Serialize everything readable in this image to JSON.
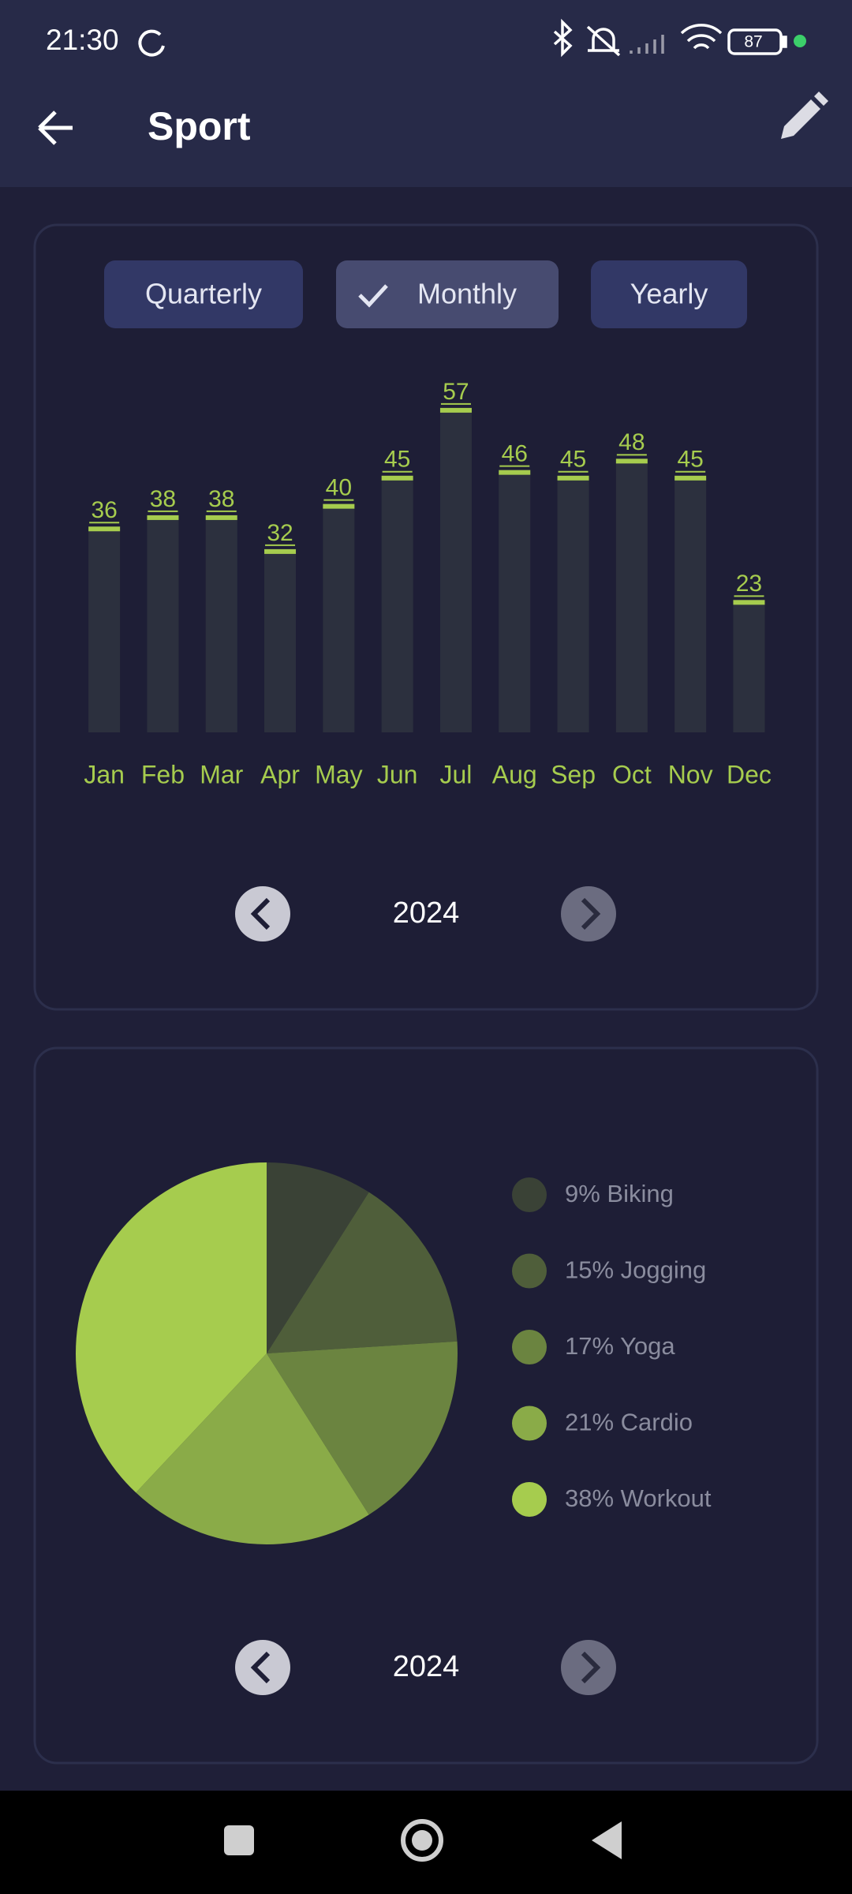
{
  "status_bar": {
    "time": "21:30",
    "battery": "87"
  },
  "app_bar": {
    "title": "Sport"
  },
  "toggles": [
    "Quarterly",
    "Monthly",
    "Yearly"
  ],
  "bar_year": "2024",
  "pie_year": "2024",
  "chart_data": [
    {
      "type": "bar",
      "categories": [
        "Jan",
        "Feb",
        "Mar",
        "Apr",
        "May",
        "Jun",
        "Jul",
        "Aug",
        "Sep",
        "Oct",
        "Nov",
        "Dec"
      ],
      "values": [
        36,
        38,
        38,
        32,
        40,
        45,
        57,
        46,
        45,
        48,
        45,
        23
      ],
      "color": "#2c303e",
      "accent": "#a6cc4e"
    },
    {
      "type": "pie",
      "values": [
        9,
        15,
        17,
        21,
        38
      ],
      "value_labels": [
        "9% Biking",
        "15% Jogging",
        "17% Yoga",
        "21% Cardio",
        "38% Workout"
      ],
      "colors": [
        "#3a4236",
        "#4f5e3a",
        "#6b8440",
        "#8aab48",
        "#a6cc4e"
      ]
    }
  ]
}
